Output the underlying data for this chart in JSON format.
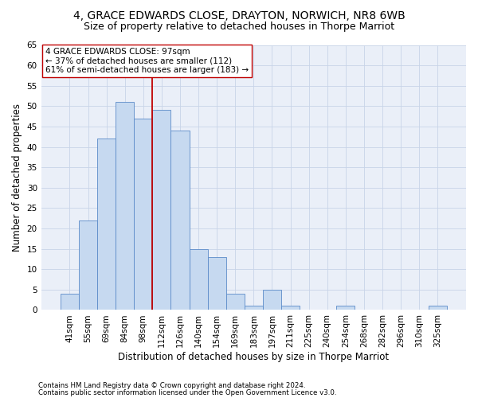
{
  "title": "4, GRACE EDWARDS CLOSE, DRAYTON, NORWICH, NR8 6WB",
  "subtitle": "Size of property relative to detached houses in Thorpe Marriot",
  "xlabel": "Distribution of detached houses by size in Thorpe Marriot",
  "ylabel": "Number of detached properties",
  "footnote1": "Contains HM Land Registry data © Crown copyright and database right 2024.",
  "footnote2": "Contains public sector information licensed under the Open Government Licence v3.0.",
  "bar_labels": [
    "41sqm",
    "55sqm",
    "69sqm",
    "84sqm",
    "98sqm",
    "112sqm",
    "126sqm",
    "140sqm",
    "154sqm",
    "169sqm",
    "183sqm",
    "197sqm",
    "211sqm",
    "225sqm",
    "240sqm",
    "254sqm",
    "268sqm",
    "282sqm",
    "296sqm",
    "310sqm",
    "325sqm"
  ],
  "bar_values": [
    4,
    22,
    42,
    51,
    47,
    49,
    44,
    15,
    13,
    4,
    1,
    5,
    1,
    0,
    0,
    1,
    0,
    0,
    0,
    0,
    1
  ],
  "bar_color": "#c6d9f0",
  "bar_edge_color": "#5b8bc9",
  "vline_color": "#c00000",
  "vline_x_index": 4.5,
  "annotation_text": "4 GRACE EDWARDS CLOSE: 97sqm\n← 37% of detached houses are smaller (112)\n61% of semi-detached houses are larger (183) →",
  "ylim": [
    0,
    65
  ],
  "yticks": [
    0,
    5,
    10,
    15,
    20,
    25,
    30,
    35,
    40,
    45,
    50,
    55,
    60,
    65
  ],
  "grid_color": "#c8d4e8",
  "background_color": "#eaeff8",
  "title_fontsize": 10,
  "subtitle_fontsize": 9,
  "xlabel_fontsize": 8.5,
  "ylabel_fontsize": 8.5,
  "tick_fontsize": 7.5,
  "annot_fontsize": 7.5,
  "footnote_fontsize": 6.2
}
